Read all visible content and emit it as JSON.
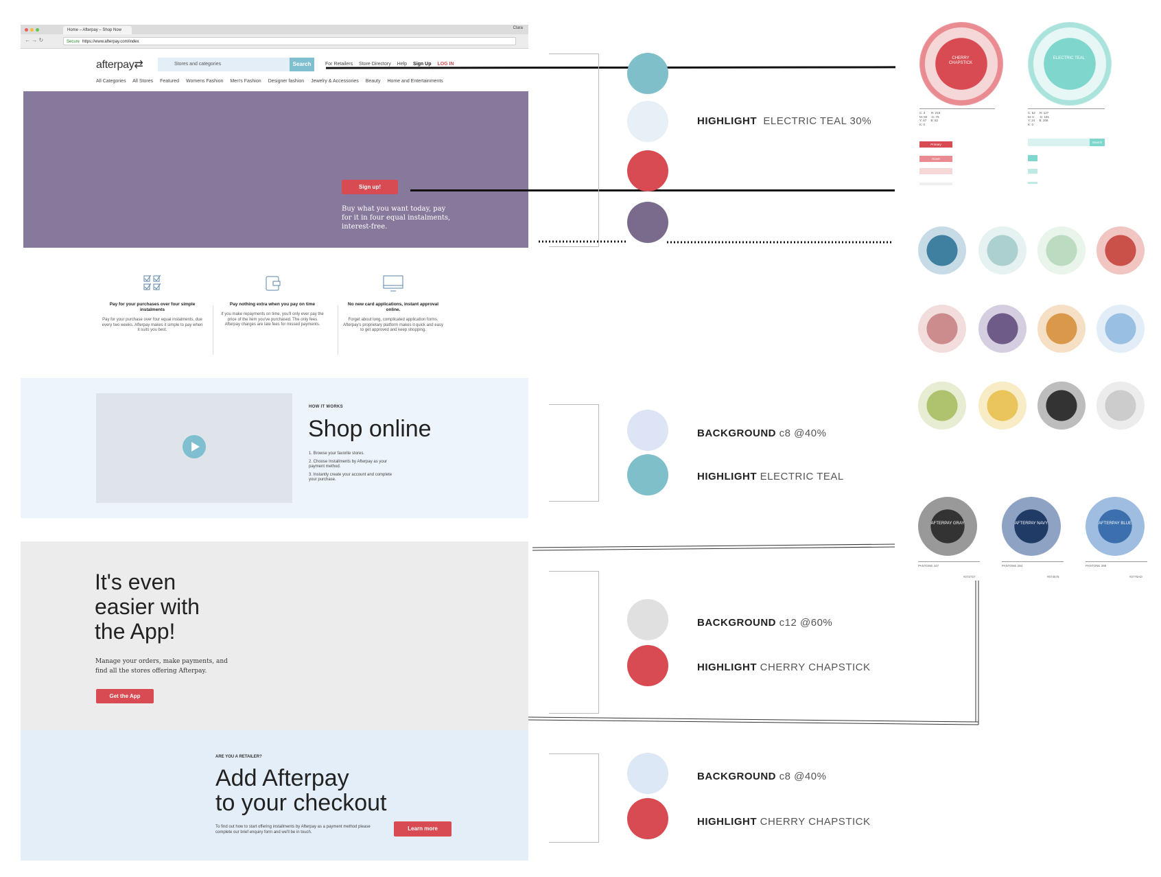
{
  "browser": {
    "tab_title": "Home – Afterpay – Shop Now",
    "profile": "Clara",
    "url": "https://www.afterpay.com/index",
    "secure_label": "Secure"
  },
  "header": {
    "logo_text": "afterpay",
    "search_placeholder": "Stores and categories",
    "search_button": "Search",
    "links": [
      "For Retailers",
      "Store Directory",
      "Help"
    ],
    "signup": "Sign Up",
    "login": "LOG IN"
  },
  "category_nav": [
    "All Categories",
    "All Stores",
    "Featured",
    "Womens Fashion",
    "Men's Fashion",
    "Designer fashion",
    "Jewelry & Accessories",
    "Beauty",
    "Home and Entertainments"
  ],
  "hero": {
    "button": "Sign up!",
    "text": "Buy what you want today, pay for it in four equal instalments, interest-free."
  },
  "features": [
    {
      "title": "Pay for your purchases over four simple instalments",
      "desc": "Pay for your purchase over four equal instalments, due every two weeks. Afterpay makes it simple to pay when it suits you best."
    },
    {
      "title": "Pay nothing extra when you pay on time",
      "desc": "If you make repayments on time, you'll only ever pay the price of the item you've purchased. The only fees Afterpay charges are late fees for missed payments."
    },
    {
      "title": "No new card applications, instant approval online.",
      "desc": "Forget about long, complicated application forms. Afterpay's proprietary platform makes it quick and easy to get approved and keep shopping."
    }
  ],
  "how": {
    "label": "HOW IT WORKS",
    "title": "Shop online",
    "steps": [
      "1. Browse your favorite stores.",
      "2. Choose Installments by Afterpay as your payment method.",
      "3. Instantly create your account and complete your purchase."
    ]
  },
  "app": {
    "title_lines": [
      "It's even",
      "easier with",
      "the App!"
    ],
    "desc": "Manage your orders, make payments, and find all the stores offering Afterpay.",
    "button": "Get the App"
  },
  "retailer": {
    "label": "ARE YOU A RETAILER?",
    "title_lines": [
      "Add Afterpay",
      "to your checkout"
    ],
    "desc": "To find out how to start offering installments by Afterpay as a payment method please complete our brief enquiry form and we'll be in touch.",
    "button": "Learn more"
  },
  "annotations": {
    "a1": {
      "bold": "HIGHLIGHT",
      "rest": "ELECTRIC TEAL 30%"
    },
    "a2": {
      "bold": "BACKGROUND",
      "rest": "c8 @40%"
    },
    "a3": {
      "bold": "HIGHLIGHT",
      "rest": "ELECTRIC TEAL"
    },
    "a4": {
      "bold": "BACKGROUND",
      "rest": "c12 @60%"
    },
    "a5": {
      "bold": "HIGHLIGHT",
      "rest": "CHERRY CHAPSTICK"
    },
    "a6": {
      "bold": "BACKGROUND",
      "rest": "c8 @40%"
    },
    "a7": {
      "bold": "HIGHLIGHT",
      "rest": "CHERRY CHAPSTICK"
    }
  },
  "palette": {
    "cherry": "CHERRY CHAPSTICK",
    "teal": "ELECTRIC TEAL",
    "gray": "AFTERPAY GRAY",
    "navy": "AFTERPAY NAVY",
    "blue": "AFTERPAY BLUE",
    "pantone_gray": "PANTONE 447",
    "pantone_navy": "PANTONE 294",
    "pantone_blue": "PANTONE 299",
    "hex_gray": "#272727",
    "hex_navy": "#074578",
    "hex_blue": "#2776AD",
    "button_primary": "Primary",
    "button_hover": "Hover",
    "search_mini": "Search"
  },
  "colors": {
    "cherry": "#d84b52",
    "teal": "#7fbfd0",
    "purple": "#87799b",
    "light_blue": "#e4eef8",
    "light_gray": "#ececec"
  }
}
